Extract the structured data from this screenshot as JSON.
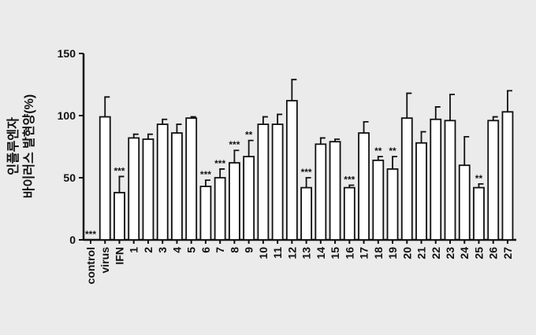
{
  "chart_data": {
    "type": "bar",
    "ylabel": [
      "인플루엔자",
      "바이러스 발현양(%)"
    ],
    "categories": [
      "control",
      "virus",
      "IFN",
      "1",
      "2",
      "3",
      "4",
      "5",
      "6",
      "7",
      "8",
      "9",
      "10",
      "11",
      "12",
      "13",
      "14",
      "15",
      "16",
      "17",
      "18",
      "19",
      "20",
      "21",
      "22",
      "23",
      "24",
      "25",
      "26",
      "27"
    ],
    "values": [
      0,
      99,
      38,
      82,
      81,
      93,
      86,
      98,
      43,
      50,
      62,
      67,
      93,
      93,
      112,
      42,
      77,
      79,
      42,
      86,
      64,
      57,
      98,
      78,
      97,
      96,
      60,
      42,
      96,
      103
    ],
    "errors": [
      null,
      16,
      13,
      3,
      4,
      4,
      7,
      1,
      5,
      7,
      10,
      13,
      6,
      8,
      17,
      8,
      5,
      2,
      2,
      9,
      3,
      10,
      20,
      9,
      10,
      21,
      23,
      3,
      3,
      17
    ],
    "annotations": [
      "***",
      null,
      "***",
      null,
      null,
      null,
      null,
      null,
      "***",
      "***",
      "***",
      "**",
      null,
      null,
      null,
      "***",
      null,
      null,
      "***",
      null,
      "**",
      "**",
      null,
      null,
      null,
      null,
      null,
      "**",
      null,
      null
    ],
    "color": "#ffffff",
    "ylim": [
      0,
      150
    ],
    "yticks": [
      0,
      50,
      100,
      150
    ]
  }
}
